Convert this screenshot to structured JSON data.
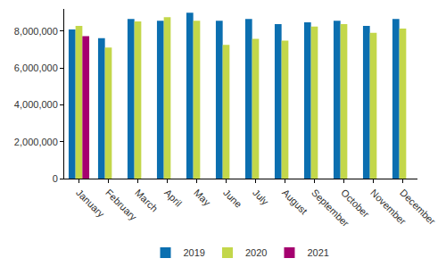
{
  "chart_data": {
    "type": "bar",
    "categories": [
      "January",
      "February",
      "March",
      "April",
      "May",
      "June",
      "July",
      "August",
      "September",
      "October",
      "November",
      "December"
    ],
    "series": [
      {
        "name": "2019",
        "color": "#0b6fb0",
        "values": [
          8090000,
          7620000,
          8660000,
          8560000,
          8990000,
          8560000,
          8660000,
          8380000,
          8470000,
          8560000,
          8280000,
          8660000
        ]
      },
      {
        "name": "2020",
        "color": "#c3d74a",
        "values": [
          8280000,
          7100000,
          8520000,
          8750000,
          8560000,
          7250000,
          7580000,
          7480000,
          8240000,
          8380000,
          7900000,
          8140000
        ]
      },
      {
        "name": "2021",
        "color": "#a5006f",
        "values": [
          7720000,
          null,
          null,
          null,
          null,
          null,
          null,
          null,
          null,
          null,
          null,
          null
        ]
      }
    ],
    "ylim": [
      0,
      9200000
    ],
    "yticks": [
      0,
      {
        "value": 2000000,
        "label": "2,000,000"
      },
      {
        "value": 4000000,
        "label": "4,000,000"
      },
      {
        "value": 6000000,
        "label": "6,000,000"
      },
      {
        "value": 8000000,
        "label": "8,000,000"
      }
    ],
    "grid": false,
    "legend": "bottom"
  }
}
